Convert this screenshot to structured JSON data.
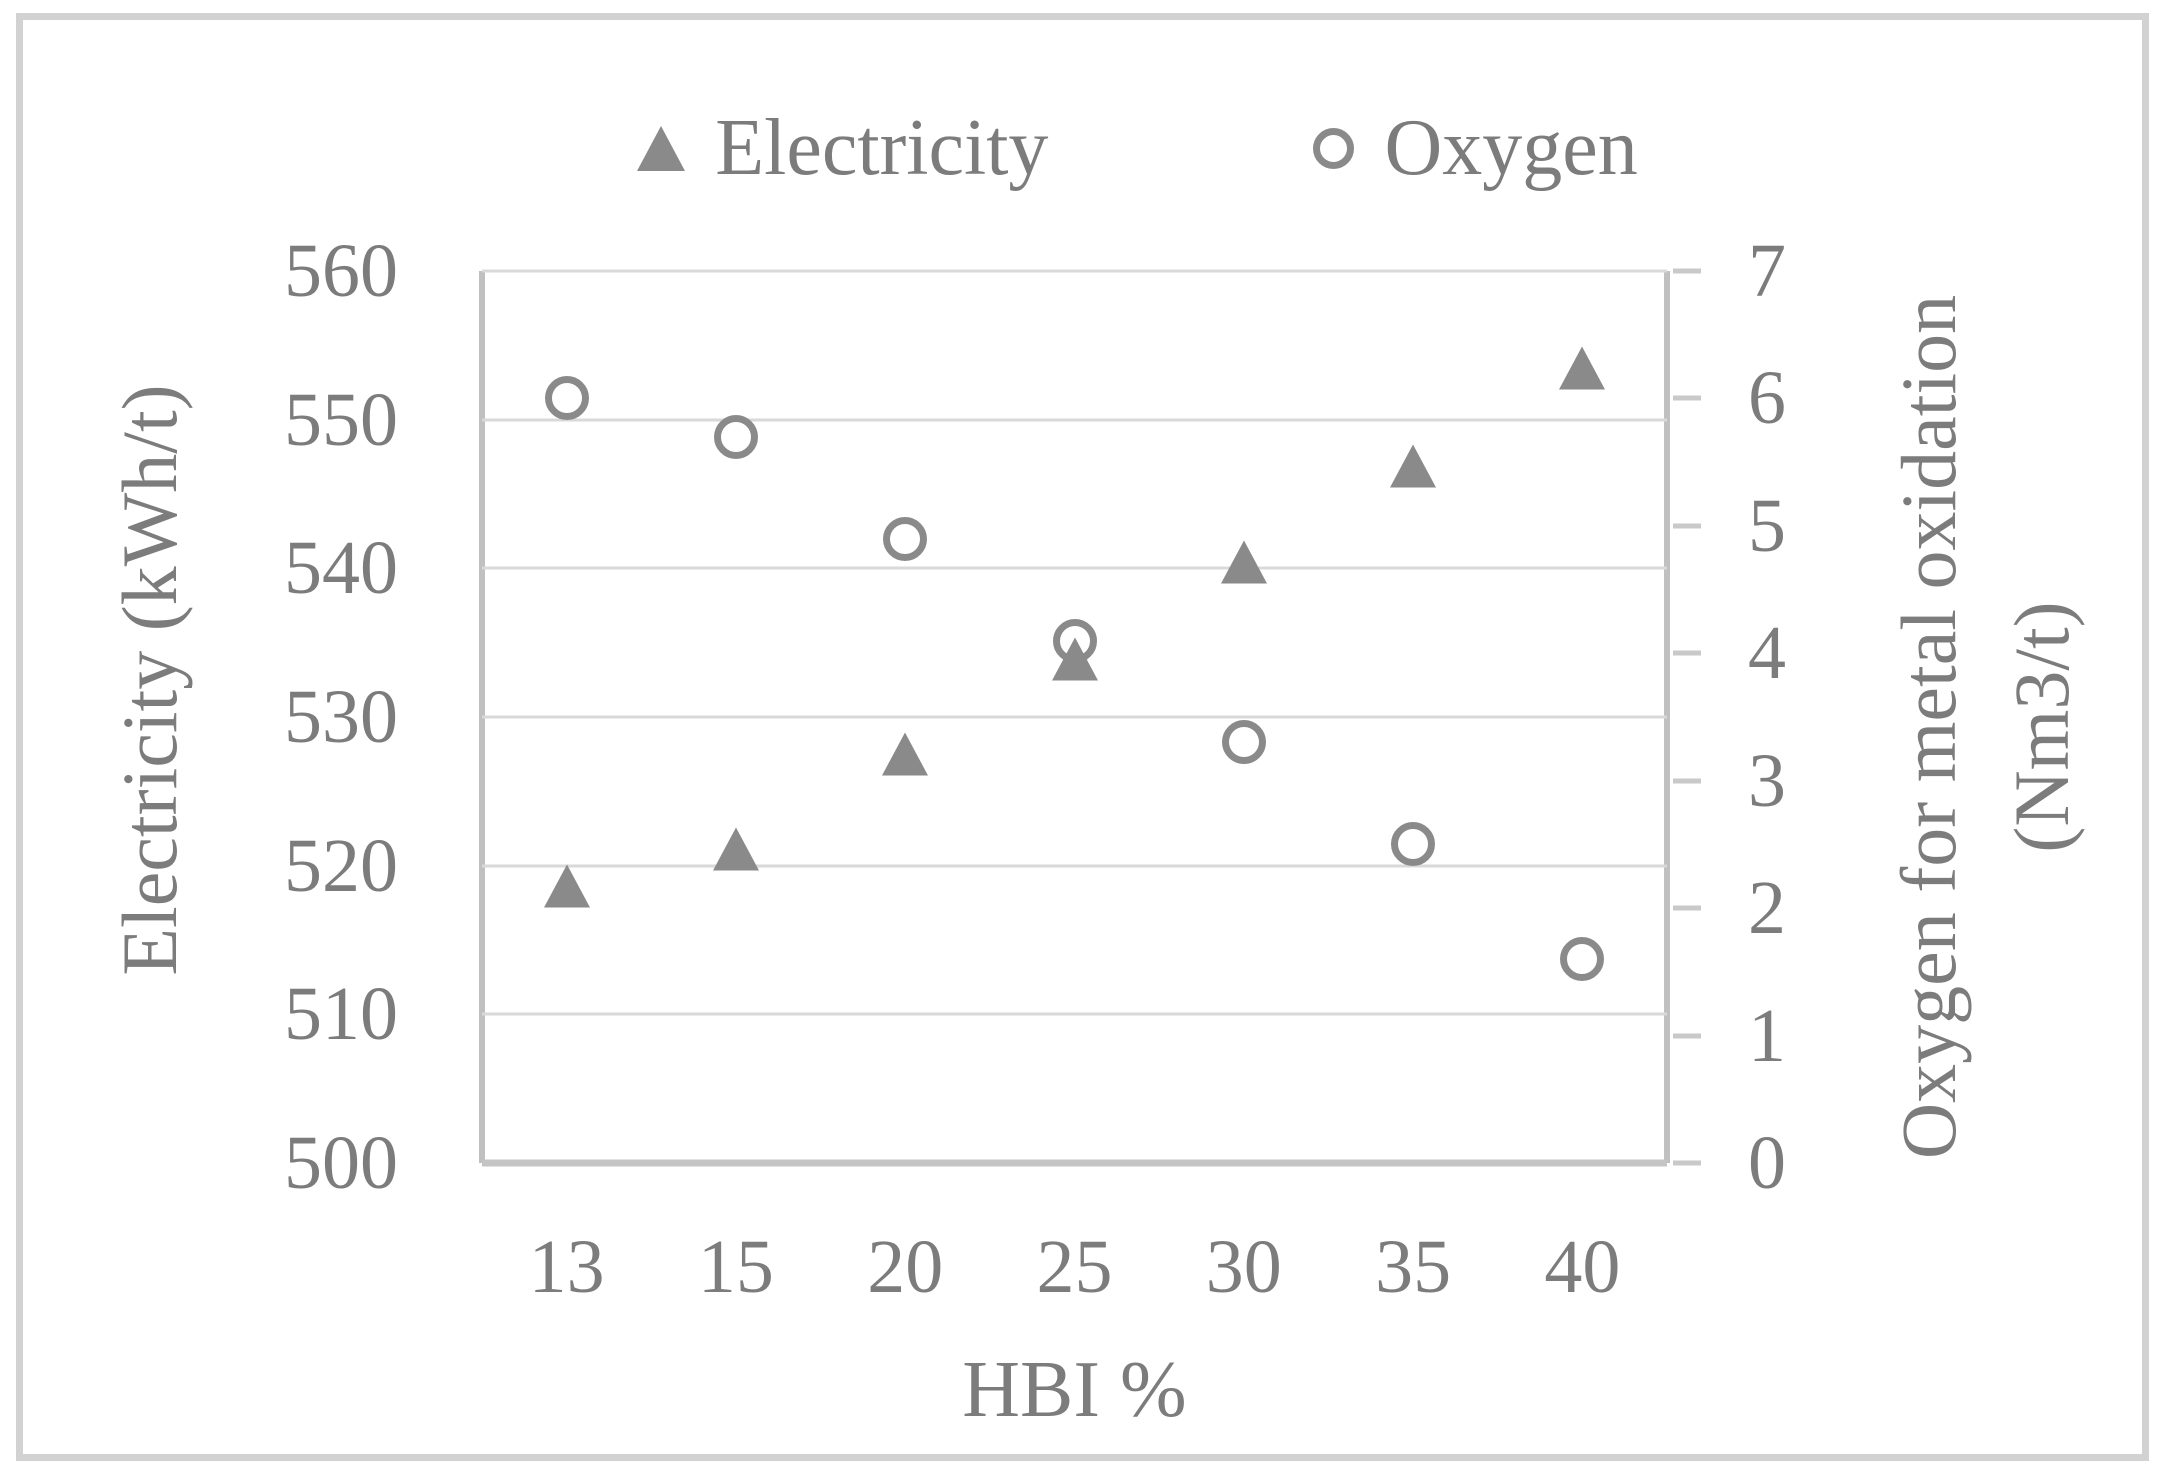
{
  "chart_data": {
    "type": "scatter",
    "title": "",
    "categories": [
      "13",
      "15",
      "20",
      "25",
      "30",
      "35",
      "40"
    ],
    "xlabel": "HBI %",
    "left_axis": {
      "title": "Electricity (kWh/t)",
      "min": 500,
      "max": 560,
      "step": 10
    },
    "right_axis": {
      "title_line1": "Oxygen for metal oxidation",
      "title_line2": "(Nm3/t)",
      "min": 0,
      "max": 7,
      "step": 1
    },
    "series": [
      {
        "name": "Electricity",
        "axis": "left",
        "marker": "triangle",
        "values": [
          518.6,
          521.1,
          527.5,
          533.9,
          540.4,
          546.9,
          553.5
        ]
      },
      {
        "name": "Oxygen",
        "axis": "right",
        "marker": "circle",
        "values": [
          6.0,
          5.7,
          4.9,
          4.1,
          3.3,
          2.5,
          1.6
        ]
      }
    ],
    "legend_position": "top",
    "grid": "horizontal",
    "colors": {
      "marker": "#8a8a8a",
      "text": "#7c7c7c",
      "gridline": "#d9d9d9",
      "axis_line": "#c0c0c0",
      "frame": "#d2d2d2",
      "background": "#ffffff"
    }
  }
}
